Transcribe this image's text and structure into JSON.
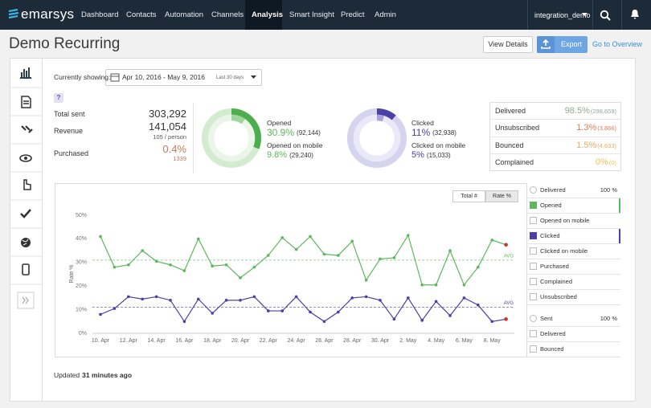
{
  "nav": {
    "logo": "emarsys",
    "items": [
      "Dashboard",
      "Contacts",
      "Automation",
      "Channels",
      "Analysis",
      "Smart Insight",
      "Predict",
      "Admin"
    ],
    "active": 4,
    "account": "integration_demo"
  },
  "header": {
    "title": "Demo Recurring",
    "buttons": [
      "View Details",
      "Export"
    ],
    "link": "Go to Overview"
  },
  "filter": {
    "label": "Currently showing:",
    "range": "Apr 10, 2016 - May 9, 2016",
    "preset": "Last 30 days",
    "help": "?"
  },
  "summary": [
    {
      "label": "Total sent",
      "value": "303,292"
    },
    {
      "label": "Revenue",
      "value": "141,054",
      "sub": "105 / person"
    },
    {
      "label": "Purchased",
      "value": "0.4%",
      "sub": "1339",
      "color": "#c8795a"
    }
  ],
  "donuts": [
    {
      "color": "#5cb85c",
      "arc_colors": [
        "#4cae4c",
        "#9fd49a"
      ],
      "track_colors": [
        "#d3ecd0",
        "#eaf6e8"
      ],
      "rows": [
        {
          "label": "Opened",
          "rate": 30.9,
          "rate_label": "30.9%",
          "count": "(92,144)"
        },
        {
          "label": "Opened on mobile",
          "rate": 9.8,
          "rate_label": "9.8%",
          "count": "(29,240)"
        }
      ]
    },
    {
      "color": "#4b3fa8",
      "arc_colors": [
        "#4b3fa8",
        "#a9a2dc"
      ],
      "track_colors": [
        "#d6d3ee",
        "#ebe9f7"
      ],
      "rows": [
        {
          "label": "Clicked",
          "rate": 11,
          "rate_label": "11%",
          "count": "(32,938)"
        },
        {
          "label": "Clicked on mobile",
          "rate": 5,
          "rate_label": "5%",
          "count": "(15,033)"
        }
      ]
    }
  ],
  "delivery": [
    {
      "label": "Delivered",
      "value": "98.5%",
      "count": "(298,659)",
      "color": "#8fa89a"
    },
    {
      "label": "Unsubscribed",
      "value": "1.3%",
      "count": "(3,866)",
      "color": "#e07b53"
    },
    {
      "label": "Bounced",
      "value": "1.5%",
      "count": "(4,633)",
      "color": "#f0a860"
    },
    {
      "label": "Complained",
      "value": "0%",
      "count": "(0)",
      "color": "#f2c14e"
    }
  ],
  "chart_data": {
    "type": "line",
    "toggle": [
      "Total #",
      "Rate %"
    ],
    "toggle_active": 1,
    "ylabel": "Rate %",
    "categories": [
      "10. Apr",
      null,
      "12. Apr",
      null,
      "14. Apr",
      null,
      "16. Apr",
      null,
      "18. Apr",
      null,
      "20. Apr",
      null,
      "22. Apr",
      null,
      "24. Apr",
      null,
      "26. Apr",
      null,
      "28. Apr",
      null,
      "30. Apr",
      null,
      "2. May",
      null,
      "4. May",
      null,
      "6. May",
      null,
      "8. May",
      null
    ],
    "series": [
      {
        "color": "#5cb85c",
        "average": 31,
        "values": [
          41,
          28,
          29,
          35,
          30.5,
          29,
          26.5,
          40,
          28.5,
          29,
          23.5,
          28,
          33,
          40.5,
          35.5,
          41,
          33.5,
          33,
          39,
          22.5,
          31.5,
          32,
          41.5,
          20.5,
          20.5,
          35,
          20.5,
          28,
          39.5,
          37.5
        ]
      },
      {
        "color": "#4b3fa8",
        "average": 11,
        "values": [
          8,
          10.5,
          15.5,
          14.5,
          15.5,
          14,
          5,
          14.5,
          8.5,
          14,
          14,
          15.5,
          9.5,
          9.5,
          15.5,
          9,
          5,
          9,
          15,
          15.5,
          14,
          6,
          15,
          5.5,
          13.5,
          7.5,
          15,
          12,
          5,
          6
        ]
      }
    ],
    "average_label": "AVG",
    "end_marker_color": "#d0312d",
    "ylim": [
      0,
      50
    ],
    "yticks": [
      {
        "value": 0,
        "label": "0%"
      },
      {
        "value": 10,
        "label": "10%"
      },
      {
        "value": 20,
        "label": "20%"
      },
      {
        "value": 30,
        "label": "30%"
      },
      {
        "value": 40,
        "label": "40%"
      },
      {
        "value": 50,
        "label": "50%"
      }
    ],
    "grid": false
  },
  "legend": {
    "groups": [
      {
        "header": "Delivered",
        "total": "100 %",
        "items": [
          {
            "label": "Opened",
            "checked": true,
            "color": "#5cb85c"
          },
          {
            "label": "Opened on mobile",
            "checked": false
          },
          {
            "label": "Clicked",
            "checked": true,
            "color": "#4b3fa8"
          },
          {
            "label": "Clicked on mobile",
            "checked": false
          },
          {
            "label": "Purchased",
            "checked": false
          },
          {
            "label": "Complained",
            "checked": false
          },
          {
            "label": "Unsubscribed",
            "checked": false
          }
        ]
      },
      {
        "header": "Sent",
        "total": "100 %",
        "items": [
          {
            "label": "Delivered",
            "checked": false
          },
          {
            "label": "Bounced",
            "checked": false
          }
        ]
      }
    ]
  },
  "footer": {
    "prefix": "Updated",
    "time": "31 minutes ago"
  }
}
